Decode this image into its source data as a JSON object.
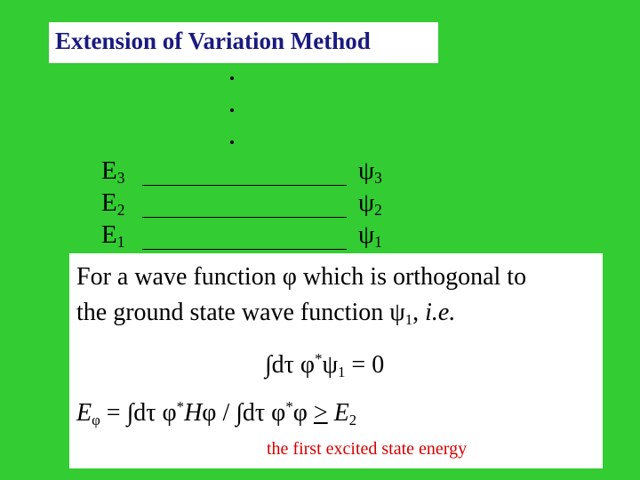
{
  "title": "Extension of Variation Method",
  "levels": [
    {
      "energy": "E",
      "energy_sub": "3",
      "state": "ψ",
      "state_sub": "3"
    },
    {
      "energy": "E",
      "energy_sub": "2",
      "state": "ψ",
      "state_sub": "2"
    },
    {
      "energy": "E",
      "energy_sub": "1",
      "state": "ψ",
      "state_sub": "1"
    }
  ],
  "body": {
    "line_1": "For a wave function φ which is orthogonal to",
    "line_2": [
      "the ground state wave function ",
      "ψ",
      "1",
      ", ",
      "i.e."
    ]
  },
  "equation_1": [
    "∫dτ φ",
    "*",
    "ψ",
    "1",
    " = 0"
  ],
  "equation_2": [
    "E",
    "φ",
    " = ∫dτ φ",
    "*",
    "H",
    "φ / ∫dτ φ",
    "*",
    "φ  ",
    ">",
    "E",
    "2"
  ],
  "note": "the first excited state energy"
}
